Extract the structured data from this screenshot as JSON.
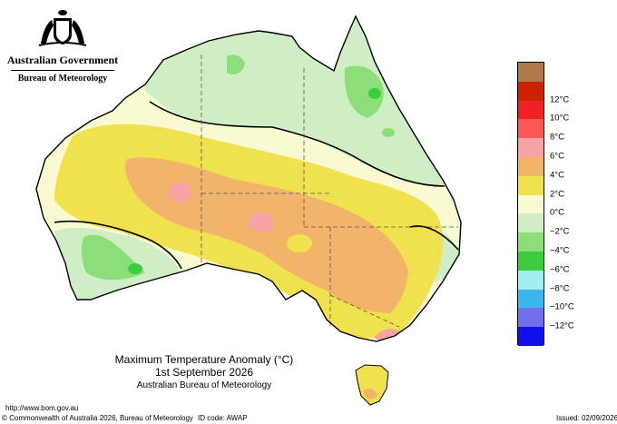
{
  "header": {
    "government": "Australian Government",
    "bureau": "Bureau of Meteorology"
  },
  "map": {
    "title": "Maximum Temperature Anomaly (°C)",
    "date": "1st September 2026",
    "source": "Australian Bureau of Meteorology"
  },
  "legend": {
    "items": [
      {
        "label": "",
        "color": "#b07a4c"
      },
      {
        "label": "12°C",
        "color": "#cc2200"
      },
      {
        "label": "10°C",
        "color": "#ee2222"
      },
      {
        "label": "8°C",
        "color": "#ff5555"
      },
      {
        "label": "6°C",
        "color": "#f5a3a3"
      },
      {
        "label": "4°C",
        "color": "#f2b36a"
      },
      {
        "label": "2°C",
        "color": "#f0e24e"
      },
      {
        "label": "0°C",
        "color": "#fafad2"
      },
      {
        "label": "−2°C",
        "color": "#cfeec6"
      },
      {
        "label": "−4°C",
        "color": "#8cde79"
      },
      {
        "label": "−6°C",
        "color": "#3ccc3c"
      },
      {
        "label": "−8°C",
        "color": "#a0f0f0"
      },
      {
        "label": "−10°C",
        "color": "#3ab7ef"
      },
      {
        "label": "−12°C",
        "color": "#7070ee"
      },
      {
        "label": "",
        "color": "#1010ee"
      }
    ]
  },
  "footer": {
    "url": "http://www.bom.gov.au",
    "copyright": "© Commonwealth of Australia 2026, Bureau of Meteorology",
    "id_code": "ID code: AWAP",
    "issued": "Issued: 02/09/2026"
  }
}
